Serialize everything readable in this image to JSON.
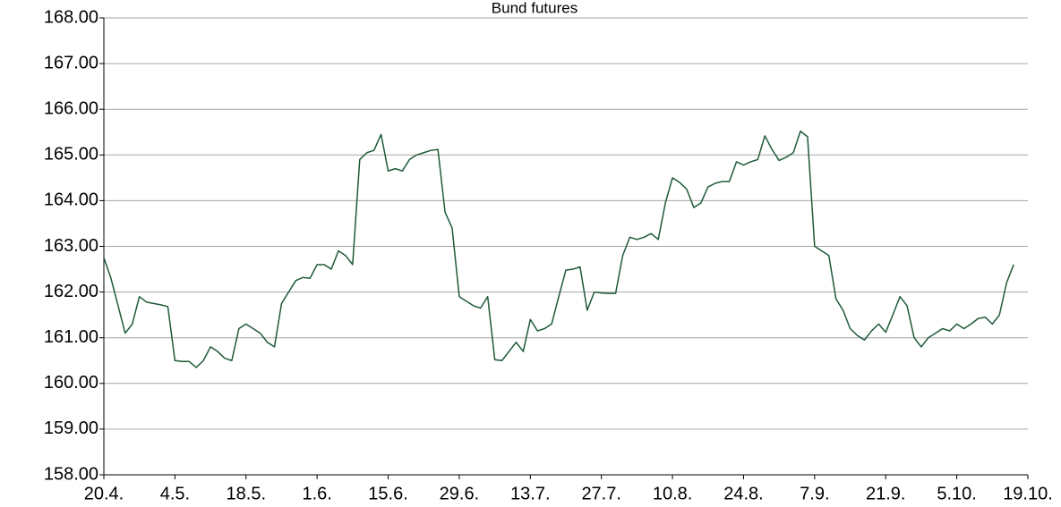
{
  "chart_data": {
    "type": "line",
    "title": "Bund futures",
    "categories": [
      "20.4.",
      null,
      null,
      null,
      null,
      null,
      null,
      null,
      null,
      null,
      "4.5.",
      null,
      null,
      null,
      null,
      null,
      null,
      null,
      null,
      null,
      "18.5.",
      null,
      null,
      null,
      null,
      null,
      null,
      null,
      null,
      null,
      "1.6.",
      null,
      null,
      null,
      null,
      null,
      null,
      null,
      null,
      null,
      "15.6.",
      null,
      null,
      null,
      null,
      null,
      null,
      null,
      null,
      null,
      "29.6.",
      null,
      null,
      null,
      null,
      null,
      null,
      null,
      null,
      null,
      "13.7.",
      null,
      null,
      null,
      null,
      null,
      null,
      null,
      null,
      null,
      "27.7.",
      null,
      null,
      null,
      null,
      null,
      null,
      null,
      null,
      null,
      "10.8.",
      null,
      null,
      null,
      null,
      null,
      null,
      null,
      null,
      null,
      "24.8.",
      null,
      null,
      null,
      null,
      null,
      null,
      null,
      null,
      null,
      "7.9.",
      null,
      null,
      null,
      null,
      null,
      null,
      null,
      null,
      null,
      "21.9.",
      null,
      null,
      null,
      null,
      null,
      null,
      null,
      null,
      null,
      "5.10.",
      null,
      null,
      null,
      null,
      null,
      null,
      null,
      null,
      null,
      "19.10."
    ],
    "series": [
      {
        "name": "Bund futures",
        "color": "#1e5a38",
        "values": [
          162.75,
          162.3,
          161.7,
          161.1,
          161.3,
          161.9,
          161.78,
          161.75,
          161.72,
          161.68,
          160.5,
          160.48,
          160.48,
          160.35,
          160.5,
          160.8,
          160.7,
          160.55,
          160.5,
          161.2,
          161.3,
          161.2,
          161.1,
          160.9,
          160.8,
          161.75,
          162.0,
          162.25,
          162.32,
          162.3,
          162.6,
          162.6,
          162.5,
          162.9,
          162.8,
          162.6,
          164.9,
          165.05,
          165.1,
          165.45,
          164.65,
          164.7,
          164.65,
          164.9,
          165.0,
          165.05,
          165.1,
          165.12,
          163.75,
          163.4,
          161.9,
          161.8,
          161.7,
          161.65,
          161.9,
          160.52,
          160.5,
          160.7,
          160.9,
          160.7,
          161.4,
          161.15,
          161.2,
          161.3,
          161.9,
          162.48,
          162.5,
          162.55,
          161.6,
          162.0,
          161.98,
          161.97,
          161.97,
          162.8,
          163.2,
          163.15,
          163.2,
          163.28,
          163.15,
          163.95,
          164.5,
          164.4,
          164.25,
          163.85,
          163.95,
          164.3,
          164.38,
          164.42,
          164.42,
          164.85,
          164.78,
          164.85,
          164.9,
          165.42,
          165.12,
          164.88,
          164.95,
          165.05,
          165.52,
          165.4,
          163.0,
          162.9,
          162.8,
          161.85,
          161.6,
          161.2,
          161.05,
          160.95,
          161.15,
          161.3,
          161.12,
          161.5,
          161.9,
          161.7,
          161.0,
          160.8,
          161.0,
          161.1,
          161.2,
          161.15,
          161.3,
          161.2,
          161.3,
          161.42,
          161.45,
          161.3,
          161.5,
          162.2,
          162.6,
          null,
          null
        ]
      }
    ],
    "ylim": [
      158,
      168
    ],
    "yticks": [
      {
        "value": 158,
        "label": "158.00"
      },
      {
        "value": 159,
        "label": "159.00"
      },
      {
        "value": 160,
        "label": "160.00"
      },
      {
        "value": 161,
        "label": "161.00"
      },
      {
        "value": 162,
        "label": "162.00"
      },
      {
        "value": 163,
        "label": "163.00"
      },
      {
        "value": 164,
        "label": "164.00"
      },
      {
        "value": 165,
        "label": "165.00"
      },
      {
        "value": 166,
        "label": "166.00"
      },
      {
        "value": 167,
        "label": "167.00"
      },
      {
        "value": 168,
        "label": "168.00"
      }
    ],
    "grid": true
  }
}
